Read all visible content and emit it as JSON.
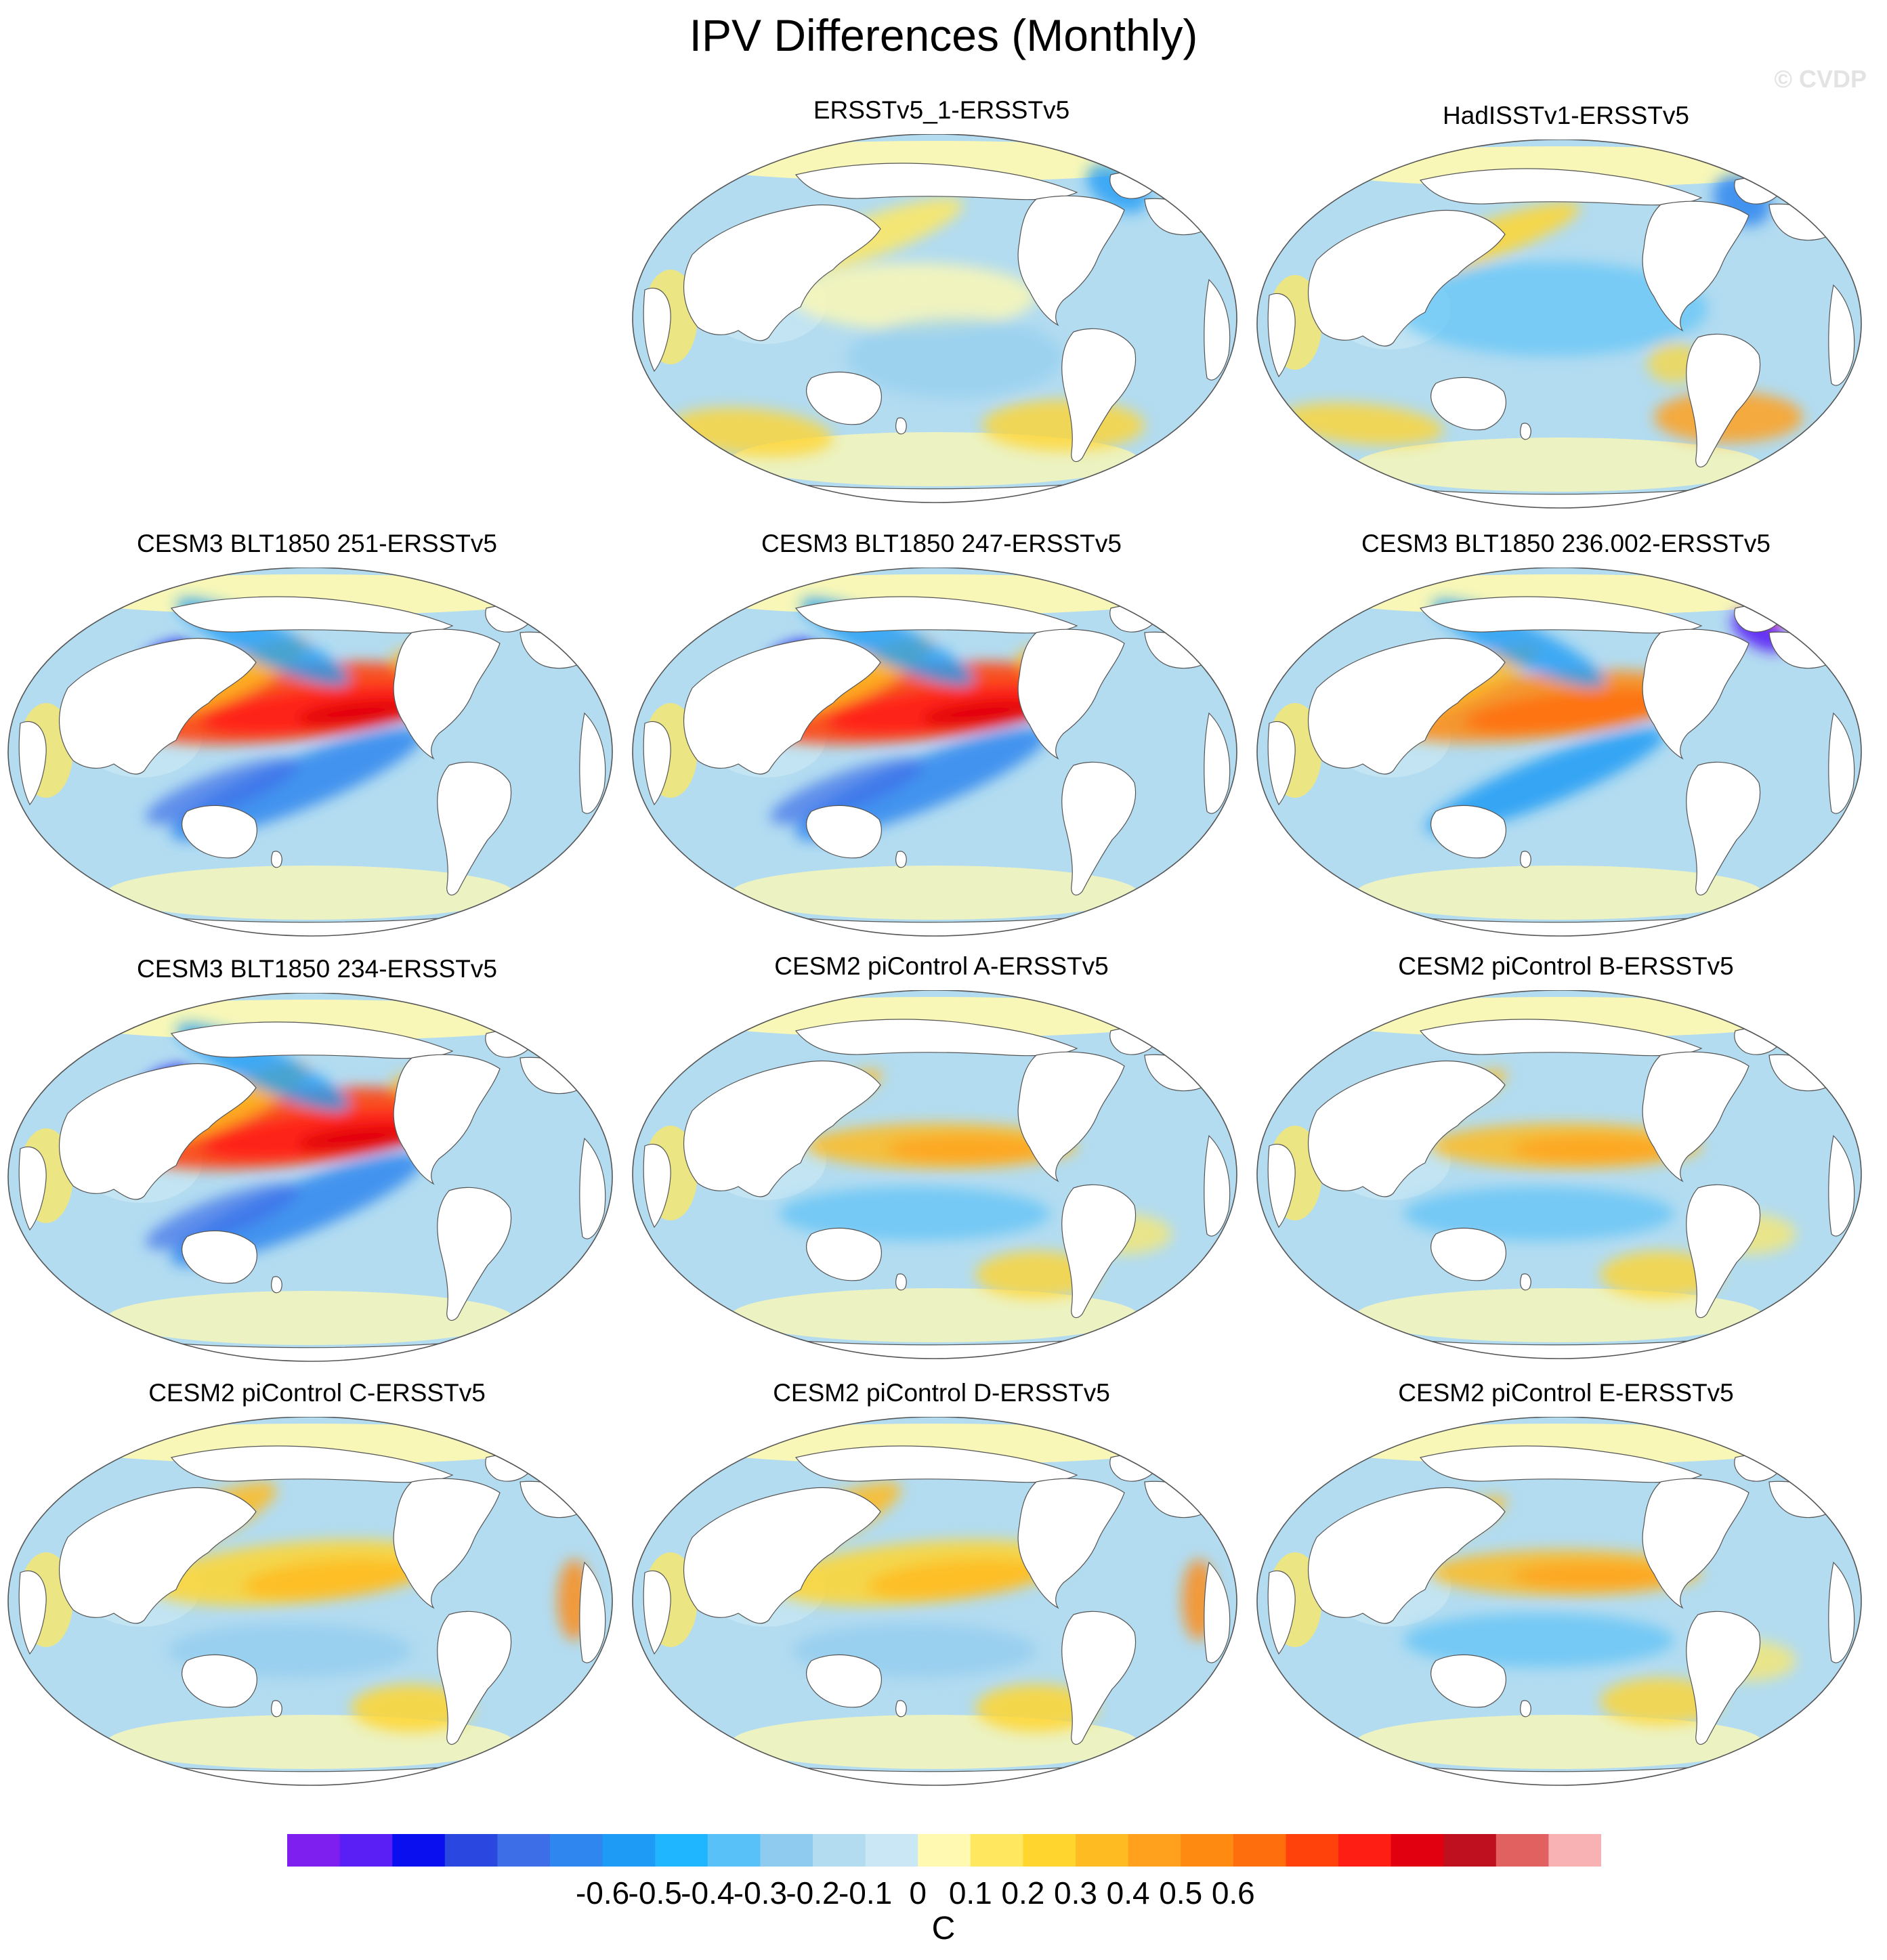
{
  "chart_data": {
    "type": "map",
    "title": "IPV Differences (Monthly)",
    "watermark": "© CVDP",
    "panels": [
      {
        "title": "ERSSTv5_1-ERSSTv5",
        "pattern": "weak"
      },
      {
        "title": "HadISSTv1-ERSSTv5",
        "pattern": "weak-cold"
      },
      {
        "title": "CESM3 BLT1850 251-ERSSTv5",
        "pattern": "strong"
      },
      {
        "title": "CESM3 BLT1850 247-ERSSTv5",
        "pattern": "strong"
      },
      {
        "title": "CESM3 BLT1850 236.002-ERSSTv5",
        "pattern": "medium"
      },
      {
        "title": "CESM3 BLT1850 234-ERSSTv5",
        "pattern": "strong"
      },
      {
        "title": "CESM2 piControl A-ERSSTv5",
        "pattern": "mild"
      },
      {
        "title": "CESM2 piControl B-ERSSTv5",
        "pattern": "mild"
      },
      {
        "title": "CESM2 piControl C-ERSSTv5",
        "pattern": "mild-warm"
      },
      {
        "title": "CESM2 piControl D-ERSSTv5",
        "pattern": "mild-warm"
      },
      {
        "title": "CESM2 piControl E-ERSSTv5",
        "pattern": "mild"
      }
    ],
    "colorbar": {
      "units": "C",
      "tick_labels": [
        "-0.6",
        "-0.5",
        "-0.4",
        "-0.3",
        "-0.2",
        "-0.1",
        "0",
        "0.1",
        "0.2",
        "0.3",
        "0.4",
        "0.5",
        "0.6"
      ],
      "colors": [
        "#7f1fef",
        "#5a1ff5",
        "#0a0fef",
        "#2a48e0",
        "#3d6ee8",
        "#2f86ef",
        "#1e9cf5",
        "#20b5ff",
        "#58c1f7",
        "#8ecbee",
        "#b3dcf1",
        "#c9e7f4",
        "#fff9b1",
        "#ffe85f",
        "#ffd52e",
        "#ffbb22",
        "#ffa11c",
        "#ff8a12",
        "#ff6e0c",
        "#ff420c",
        "#ff1e14",
        "#e0000f",
        "#bf1020",
        "#e16160",
        "#f8b2b3"
      ]
    }
  }
}
